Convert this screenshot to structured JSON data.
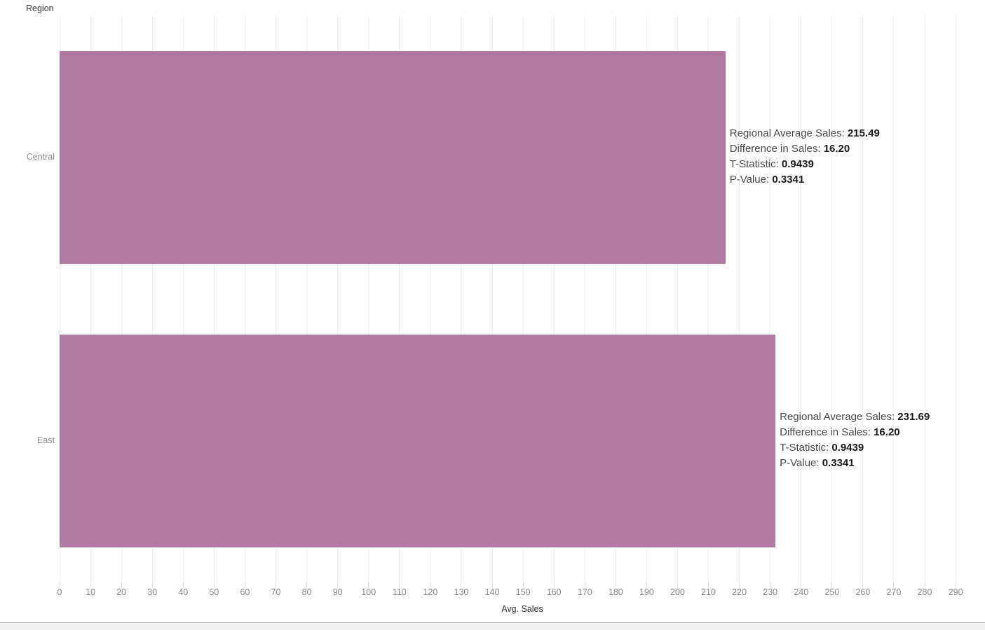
{
  "colors": {
    "bar": "#b07aa1",
    "gridline": "#efefef",
    "tick_text": "#8a8a8a",
    "axis_text": "#333333",
    "annotation_label": "#4a4a4a",
    "annotation_value": "#1b1b1b"
  },
  "chart_data": {
    "type": "bar",
    "orientation": "horizontal",
    "title": "",
    "xlabel": "Avg. Sales",
    "ylabel": "Region",
    "categories": [
      "Central",
      "East"
    ],
    "series": [
      {
        "name": "Avg. Sales",
        "values": [
          215.49,
          231.69
        ]
      }
    ],
    "xlim": [
      0,
      299.5
    ],
    "xticks": [
      0,
      10,
      20,
      30,
      40,
      50,
      60,
      70,
      80,
      90,
      100,
      110,
      120,
      130,
      140,
      150,
      160,
      170,
      180,
      190,
      200,
      210,
      220,
      230,
      240,
      250,
      260,
      270,
      280,
      290
    ],
    "grid": true,
    "legend": false,
    "bar_color": "#b07aa1",
    "annotations": [
      {
        "category": "Central",
        "lines": [
          {
            "label": "Regional Average Sales: ",
            "value": "215.49"
          },
          {
            "label": "Difference in Sales: ",
            "value": "16.20"
          },
          {
            "label": "T-Statistic: ",
            "value": "0.9439"
          },
          {
            "label": "P-Value: ",
            "value": "0.3341"
          }
        ]
      },
      {
        "category": "East",
        "lines": [
          {
            "label": "Regional Average Sales: ",
            "value": "231.69"
          },
          {
            "label": "Difference in Sales: ",
            "value": "16.20"
          },
          {
            "label": "T-Statistic: ",
            "value": "0.9439"
          },
          {
            "label": "P-Value: ",
            "value": "0.3341"
          }
        ]
      }
    ]
  }
}
